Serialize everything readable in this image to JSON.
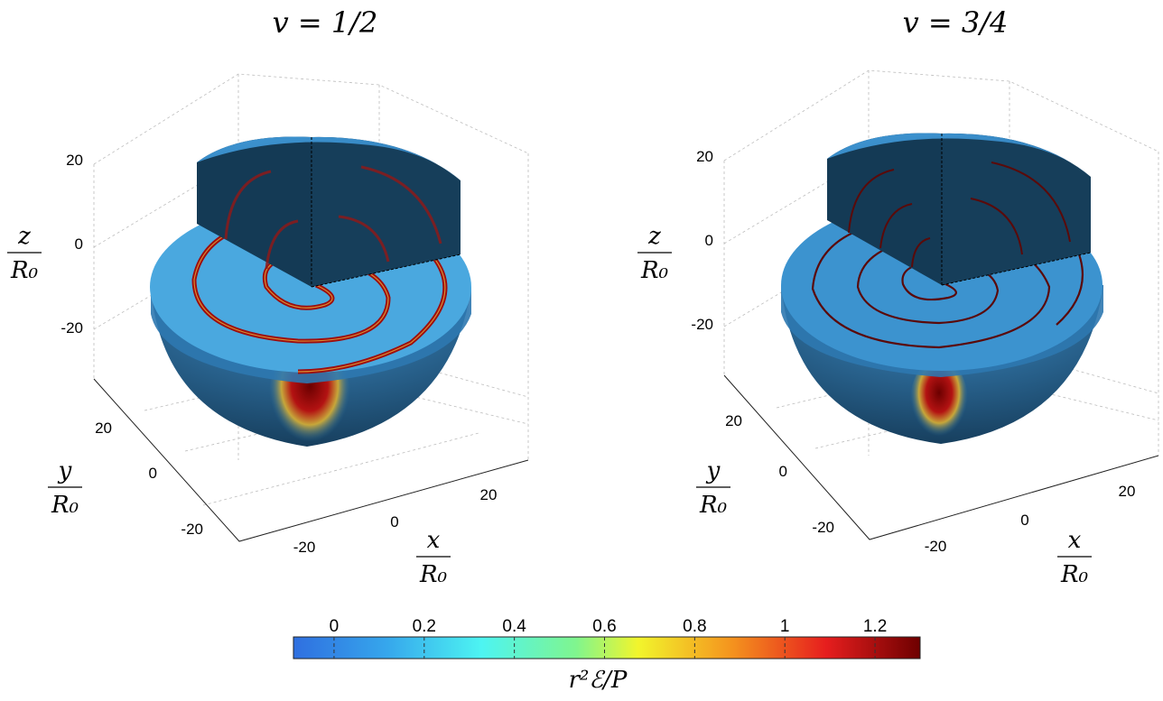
{
  "chart_data": [
    {
      "type": "heatmap",
      "title": "v = 1/2",
      "xlabel": "x / R0",
      "ylabel": "y / R0",
      "zlabel": "z / R0",
      "xticks": [
        "-20",
        "0",
        "20"
      ],
      "yticks": [
        "-20",
        "0",
        "20"
      ],
      "zticks": [
        "-20",
        "0",
        "20"
      ],
      "xlim": [
        -30,
        30
      ],
      "ylim": [
        -30,
        30
      ],
      "zlim": [
        -30,
        30
      ],
      "grid": true,
      "description_values": {
        "spiral_turns": 2.5,
        "bottom_max": 1.3
      }
    },
    {
      "type": "heatmap",
      "title": "v = 3/4",
      "xlabel": "x / R0",
      "ylabel": "y / R0",
      "zlabel": "z / R0",
      "xticks": [
        "-20",
        "0",
        "20"
      ],
      "yticks": [
        "-20",
        "0",
        "20"
      ],
      "zticks": [
        "-20",
        "0",
        "20"
      ],
      "xlim": [
        -30,
        30
      ],
      "ylim": [
        -30,
        30
      ],
      "zlim": [
        -30,
        30
      ],
      "grid": true,
      "description_values": {
        "spiral_turns": 3.5,
        "bottom_max": 1.3
      }
    }
  ],
  "colorbar": {
    "label": "r²ℰ/P",
    "ticks": [
      "0",
      "0.2",
      "0.4",
      "0.6",
      "0.8",
      "1",
      "1.2"
    ],
    "tick_values": [
      0,
      0.2,
      0.4,
      0.6,
      0.8,
      1.0,
      1.2
    ],
    "range": [
      -0.09,
      1.3
    ],
    "colormap": "jet"
  }
}
